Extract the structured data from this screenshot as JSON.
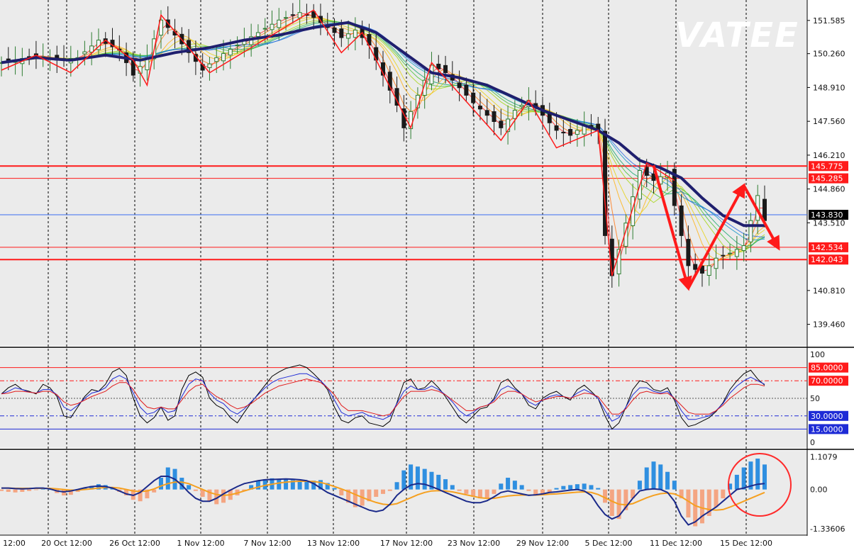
{
  "watermark": "VATEE",
  "colors": {
    "background": "#ebebeb",
    "bull": "#2e7d32",
    "bear": "#1a1a1a",
    "zigzag": "#ff1a1a",
    "ma_main": "#1f1f6e",
    "level_line": "#ff1a1a",
    "current_line": "#3a6df0",
    "osc_black": "#000000",
    "osc_blue": "#1e2bd6",
    "osc_red": "#e01b1b",
    "hist_pos": "#2f8fe0",
    "hist_neg": "#f4a582",
    "signal_orange": "#f5a020",
    "macd_navy": "#1b2a8a",
    "highlight": "#ff2a2a"
  },
  "chart_data": [
    {
      "type": "candlestick",
      "panel": "price",
      "y_ticks": [
        "151.585",
        "150.260",
        "148.910",
        "147.560",
        "146.210",
        "144.860",
        "143.510",
        "140.810",
        "139.460"
      ],
      "ylim": [
        138.6,
        152.4
      ],
      "x_labels": [
        "12:00",
        "20 Oct 12:00",
        "26 Oct 12:00",
        "1 Nov 12:00",
        "7 Nov 12:00",
        "13 Nov 12:00",
        "17 Nov 12:00",
        "23 Nov 12:00",
        "29 Nov 12:00",
        "5 Dec 12:00",
        "11 Dec 12:00",
        "15 Dec 12:00"
      ],
      "horizontal_levels": [
        {
          "value": 145.775,
          "label": "145.775",
          "color": "#ff1a1a"
        },
        {
          "value": 145.285,
          "label": "145.285",
          "color": "#ff1a1a"
        },
        {
          "value": 142.534,
          "label": "142.534",
          "color": "#ff1a1a"
        },
        {
          "value": 142.043,
          "label": "142.043",
          "color": "#ff1a1a"
        }
      ],
      "current_price": {
        "value": 143.83,
        "label": "143.830"
      },
      "close_path": [
        [
          0,
          149.9
        ],
        [
          2,
          150.0
        ],
        [
          5,
          150.2
        ],
        [
          8,
          150.0
        ],
        [
          11,
          150.1
        ],
        [
          14,
          150.8
        ],
        [
          17,
          150.4
        ],
        [
          19,
          149.4
        ],
        [
          21,
          150.1
        ],
        [
          23,
          151.6
        ],
        [
          25,
          151.0
        ],
        [
          27,
          150.3
        ],
        [
          29,
          149.6
        ],
        [
          31,
          150.1
        ],
        [
          34,
          150.6
        ],
        [
          37,
          151.1
        ],
        [
          40,
          151.6
        ],
        [
          43,
          151.9
        ],
        [
          45,
          151.7
        ],
        [
          47,
          151.3
        ],
        [
          49,
          150.9
        ],
        [
          51,
          151.2
        ],
        [
          53,
          150.6
        ],
        [
          55,
          149.4
        ],
        [
          57,
          148.2
        ],
        [
          58,
          147.3
        ],
        [
          60,
          148.6
        ],
        [
          62,
          149.8
        ],
        [
          64,
          149.5
        ],
        [
          66,
          148.9
        ],
        [
          68,
          148.3
        ],
        [
          70,
          147.8
        ],
        [
          72,
          147.3
        ],
        [
          74,
          148.0
        ],
        [
          76,
          148.4
        ],
        [
          78,
          147.8
        ],
        [
          80,
          147.2
        ],
        [
          82,
          147.0
        ],
        [
          84,
          147.4
        ],
        [
          86,
          147.2
        ],
        [
          87,
          143.0
        ],
        [
          88,
          141.4
        ],
        [
          90,
          143.5
        ],
        [
          92,
          145.6
        ],
        [
          94,
          145.2
        ],
        [
          96,
          145.5
        ],
        [
          97,
          144.2
        ],
        [
          99,
          141.8
        ],
        [
          101,
          141.5
        ],
        [
          103,
          142.1
        ],
        [
          105,
          142.3
        ],
        [
          107,
          142.6
        ],
        [
          109,
          144.6
        ],
        [
          110,
          143.6
        ]
      ],
      "ma_path": [
        [
          0,
          149.9
        ],
        [
          5,
          150.1
        ],
        [
          10,
          150.0
        ],
        [
          15,
          150.2
        ],
        [
          20,
          150.0
        ],
        [
          25,
          150.3
        ],
        [
          30,
          150.5
        ],
        [
          35,
          150.8
        ],
        [
          40,
          151.0
        ],
        [
          45,
          151.3
        ],
        [
          50,
          151.5
        ],
        [
          54,
          151.1
        ],
        [
          58,
          150.3
        ],
        [
          62,
          149.5
        ],
        [
          66,
          149.3
        ],
        [
          70,
          149.0
        ],
        [
          74,
          148.5
        ],
        [
          78,
          148.0
        ],
        [
          82,
          147.6
        ],
        [
          86,
          147.2
        ],
        [
          89,
          146.7
        ],
        [
          92,
          146.0
        ],
        [
          95,
          145.7
        ],
        [
          98,
          145.3
        ],
        [
          101,
          144.5
        ],
        [
          104,
          143.8
        ],
        [
          107,
          143.4
        ],
        [
          110,
          143.4
        ]
      ],
      "zigzag": [
        [
          0,
          149.6
        ],
        [
          5,
          150.2
        ],
        [
          10,
          149.5
        ],
        [
          15,
          150.8
        ],
        [
          19,
          150.0
        ],
        [
          21,
          149.0
        ],
        [
          23,
          151.8
        ],
        [
          30,
          149.5
        ],
        [
          45,
          152.0
        ],
        [
          49,
          150.3
        ],
        [
          52,
          151.1
        ],
        [
          59,
          147.3
        ],
        [
          62,
          149.9
        ],
        [
          72,
          146.8
        ],
        [
          76,
          148.4
        ],
        [
          80,
          146.5
        ],
        [
          86,
          147.2
        ],
        [
          88,
          141.4
        ],
        [
          93,
          145.9
        ],
        [
          97,
          145.2
        ]
      ],
      "arrows": [
        [
          [
            94,
            145.8
          ],
          [
            99,
            140.9
          ]
        ],
        [
          [
            99,
            140.9
          ],
          [
            107,
            145.0
          ]
        ],
        [
          [
            107,
            145.0
          ],
          [
            112,
            142.5
          ]
        ]
      ]
    },
    {
      "type": "line",
      "panel": "stochastic",
      "y_ticks": [
        "100",
        "50",
        "0"
      ],
      "ylim": [
        0,
        100
      ],
      "levels": [
        {
          "value": 85,
          "label": "85.0000",
          "color": "#ff1a1a"
        },
        {
          "value": 70,
          "label": "70.0000",
          "color": "#ff1a1a"
        },
        {
          "value": 30,
          "label": "30.0000",
          "color": "#1e2bd6"
        },
        {
          "value": 15,
          "label": "15.0000",
          "color": "#1e2bd6"
        }
      ],
      "series": [
        {
          "color": "#000000",
          "values": [
            55,
            62,
            66,
            60,
            58,
            55,
            66,
            62,
            52,
            30,
            28,
            40,
            52,
            60,
            58,
            66,
            80,
            84,
            76,
            50,
            30,
            22,
            28,
            40,
            25,
            30,
            60,
            76,
            80,
            74,
            50,
            42,
            38,
            28,
            22,
            34,
            45,
            55,
            65,
            75,
            80,
            84,
            86,
            88,
            85,
            78,
            70,
            60,
            40,
            25,
            22,
            28,
            30,
            22,
            20,
            18,
            24,
            45,
            68,
            72,
            60,
            62,
            70,
            62,
            52,
            40,
            28,
            22,
            30,
            38,
            40,
            50,
            68,
            72,
            62,
            55,
            42,
            38,
            50,
            55,
            58,
            52,
            48,
            60,
            65,
            58,
            50,
            30,
            15,
            22,
            40,
            60,
            70,
            68,
            60,
            58,
            62,
            48,
            28,
            18,
            20,
            24,
            28,
            35,
            45,
            60,
            70,
            78,
            82,
            72,
            65
          ]
        },
        {
          "color": "#1e2bd6",
          "values": [
            55,
            58,
            62,
            60,
            57,
            56,
            60,
            60,
            54,
            40,
            36,
            42,
            50,
            56,
            58,
            62,
            72,
            76,
            72,
            56,
            40,
            32,
            34,
            40,
            34,
            36,
            52,
            66,
            72,
            70,
            56,
            48,
            44,
            36,
            32,
            38,
            46,
            54,
            62,
            68,
            72,
            74,
            76,
            78,
            78,
            74,
            70,
            62,
            48,
            34,
            30,
            32,
            34,
            30,
            28,
            26,
            30,
            44,
            58,
            64,
            60,
            60,
            64,
            60,
            54,
            46,
            36,
            30,
            34,
            40,
            42,
            48,
            60,
            64,
            60,
            55,
            46,
            42,
            48,
            52,
            54,
            52,
            50,
            56,
            60,
            56,
            50,
            36,
            24,
            28,
            40,
            54,
            62,
            62,
            58,
            56,
            58,
            50,
            36,
            26,
            26,
            28,
            30,
            36,
            44,
            56,
            64,
            70,
            74,
            70,
            66
          ]
        },
        {
          "color": "#e01b1b",
          "values": [
            55,
            56,
            58,
            58,
            57,
            56,
            58,
            58,
            54,
            46,
            42,
            44,
            48,
            52,
            55,
            58,
            64,
            68,
            68,
            60,
            48,
            40,
            38,
            40,
            38,
            38,
            48,
            58,
            64,
            66,
            58,
            52,
            48,
            42,
            38,
            40,
            44,
            50,
            56,
            60,
            64,
            66,
            68,
            70,
            72,
            70,
            68,
            62,
            54,
            42,
            36,
            36,
            36,
            34,
            32,
            30,
            32,
            42,
            52,
            58,
            58,
            58,
            60,
            58,
            54,
            48,
            42,
            36,
            36,
            40,
            42,
            46,
            54,
            58,
            58,
            55,
            50,
            46,
            48,
            50,
            52,
            52,
            50,
            53,
            56,
            55,
            52,
            42,
            32,
            32,
            38,
            48,
            56,
            58,
            56,
            55,
            56,
            50,
            42,
            34,
            32,
            32,
            32,
            36,
            42,
            50,
            56,
            62,
            66,
            66,
            64
          ]
        }
      ]
    },
    {
      "type": "bar",
      "panel": "macd",
      "y_ticks": [
        "1.1079",
        "0.00",
        "-1.33606"
      ],
      "ylim": [
        -1.43,
        1.22
      ],
      "histogram": [
        -0.05,
        -0.08,
        -0.1,
        -0.08,
        -0.05,
        -0.02,
        0.05,
        0.0,
        -0.12,
        -0.2,
        -0.18,
        -0.08,
        0.05,
        0.12,
        0.18,
        0.15,
        0.05,
        -0.08,
        -0.2,
        -0.35,
        -0.4,
        -0.3,
        -0.1,
        0.4,
        0.75,
        0.7,
        0.4,
        0.15,
        -0.05,
        -0.25,
        -0.4,
        -0.5,
        -0.45,
        -0.35,
        -0.2,
        -0.05,
        0.15,
        0.3,
        0.35,
        0.38,
        0.36,
        0.34,
        0.32,
        0.3,
        0.28,
        0.3,
        0.32,
        0.22,
        0.05,
        -0.2,
        -0.45,
        -0.6,
        -0.55,
        -0.4,
        -0.25,
        -0.15,
        -0.05,
        0.25,
        0.65,
        0.85,
        0.78,
        0.7,
        0.6,
        0.5,
        0.35,
        0.15,
        -0.05,
        -0.15,
        -0.25,
        -0.3,
        -0.28,
        -0.15,
        0.2,
        0.4,
        0.3,
        0.15,
        -0.05,
        -0.2,
        -0.15,
        -0.1,
        0.05,
        0.12,
        0.15,
        0.18,
        0.2,
        0.15,
        0.05,
        -0.45,
        -0.9,
        -1.0,
        -0.7,
        -0.3,
        0.3,
        0.75,
        0.95,
        0.85,
        0.6,
        0.3,
        -0.3,
        -0.95,
        -1.25,
        -1.15,
        -0.9,
        -0.6,
        -0.3,
        0.2,
        0.5,
        0.75,
        0.95,
        1.05,
        0.85
      ],
      "macd_line": [
        0.05,
        0.05,
        0.03,
        0.02,
        0.03,
        0.05,
        0.05,
        0.02,
        -0.05,
        -0.08,
        -0.05,
        0.0,
        0.06,
        0.1,
        0.12,
        0.1,
        0.05,
        -0.05,
        -0.15,
        -0.2,
        -0.1,
        0.1,
        0.3,
        0.45,
        0.45,
        0.35,
        0.15,
        -0.1,
        -0.3,
        -0.4,
        -0.4,
        -0.3,
        -0.15,
        -0.02,
        0.1,
        0.2,
        0.25,
        0.3,
        0.33,
        0.34,
        0.35,
        0.36,
        0.35,
        0.33,
        0.3,
        0.2,
        0.05,
        -0.1,
        -0.2,
        -0.3,
        -0.4,
        -0.5,
        -0.6,
        -0.7,
        -0.75,
        -0.7,
        -0.5,
        -0.2,
        0.0,
        0.15,
        0.2,
        0.18,
        0.1,
        0.0,
        -0.1,
        -0.2,
        -0.3,
        -0.4,
        -0.45,
        -0.45,
        -0.38,
        -0.25,
        -0.1,
        -0.05,
        -0.1,
        -0.15,
        -0.2,
        -0.18,
        -0.15,
        -0.1,
        -0.08,
        -0.05,
        -0.02,
        0.0,
        -0.05,
        -0.2,
        -0.55,
        -0.85,
        -1.0,
        -0.9,
        -0.6,
        -0.3,
        -0.05,
        0.0,
        0.02,
        0.0,
        -0.1,
        -0.4,
        -0.9,
        -1.2,
        -1.1,
        -0.9,
        -0.75,
        -0.6,
        -0.4,
        -0.2,
        0.0,
        0.05,
        0.12,
        0.18,
        0.2
      ],
      "signal_line": [
        0.05,
        0.05,
        0.04,
        0.04,
        0.04,
        0.04,
        0.04,
        0.04,
        0.02,
        0.0,
        -0.02,
        -0.02,
        0.0,
        0.02,
        0.05,
        0.07,
        0.07,
        0.05,
        0.0,
        -0.05,
        -0.07,
        -0.05,
        0.02,
        0.12,
        0.2,
        0.25,
        0.25,
        0.2,
        0.1,
        0.0,
        -0.1,
        -0.17,
        -0.2,
        -0.18,
        -0.12,
        -0.05,
        0.02,
        0.08,
        0.14,
        0.18,
        0.22,
        0.25,
        0.27,
        0.28,
        0.28,
        0.27,
        0.24,
        0.18,
        0.1,
        0.02,
        -0.07,
        -0.17,
        -0.27,
        -0.36,
        -0.44,
        -0.5,
        -0.52,
        -0.48,
        -0.38,
        -0.28,
        -0.18,
        -0.1,
        -0.05,
        -0.04,
        -0.05,
        -0.08,
        -0.13,
        -0.18,
        -0.23,
        -0.28,
        -0.3,
        -0.3,
        -0.26,
        -0.22,
        -0.2,
        -0.19,
        -0.19,
        -0.19,
        -0.18,
        -0.16,
        -0.15,
        -0.13,
        -0.11,
        -0.09,
        -0.08,
        -0.1,
        -0.17,
        -0.28,
        -0.4,
        -0.5,
        -0.52,
        -0.48,
        -0.38,
        -0.28,
        -0.2,
        -0.14,
        -0.12,
        -0.15,
        -0.25,
        -0.4,
        -0.55,
        -0.63,
        -0.68,
        -0.7,
        -0.68,
        -0.6,
        -0.5,
        -0.4,
        -0.3,
        -0.2,
        -0.1
      ]
    }
  ]
}
